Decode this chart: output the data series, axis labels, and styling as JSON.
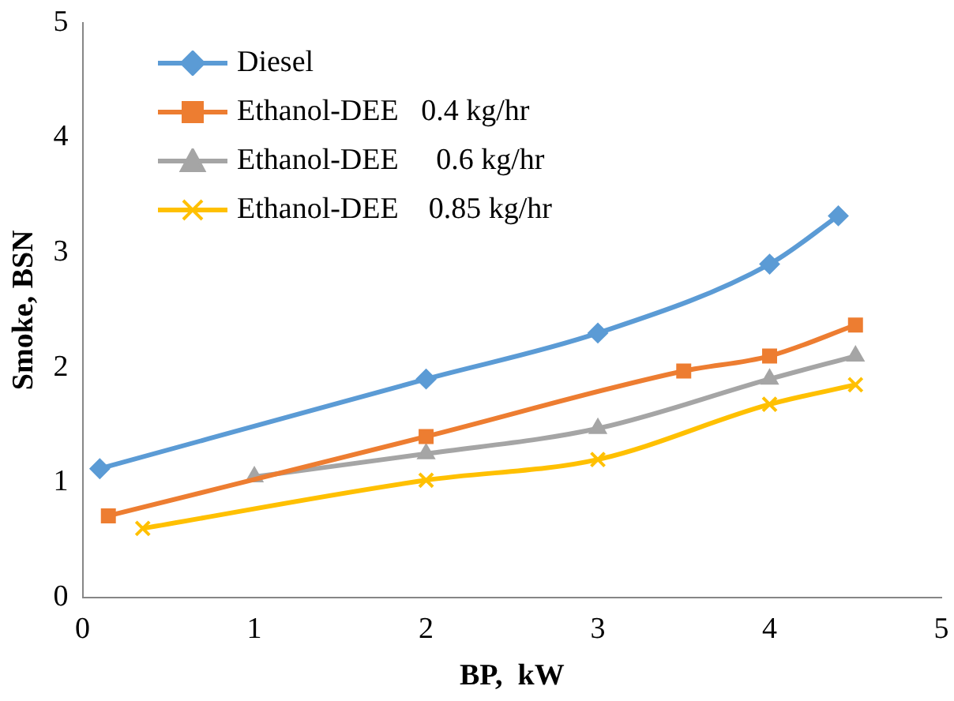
{
  "chart_data": {
    "type": "line",
    "xlabel": "BP,  kW",
    "ylabel": "Smoke, BSN",
    "xlim": [
      0,
      5
    ],
    "xticks": [
      0,
      1,
      2,
      3,
      4,
      5
    ],
    "ylim": [
      0,
      5
    ],
    "yticks": [
      0,
      1,
      2,
      3,
      4,
      5
    ],
    "grid": false,
    "legend": "top left",
    "series": [
      {
        "name": "Diesel",
        "color": "#5b9bd5",
        "marker": "diamond",
        "x": [
          0.1,
          2,
          3,
          4,
          4.4
        ],
        "values": [
          1.12,
          1.9,
          2.3,
          2.9,
          3.32
        ]
      },
      {
        "name": "Ethanol-DEE   0.4 kg/hr",
        "color": "#ed7d31",
        "marker": "square",
        "x": [
          0.15,
          2,
          3.5,
          4,
          4.5
        ],
        "values": [
          0.71,
          1.4,
          1.97,
          2.1,
          2.37
        ]
      },
      {
        "name": "Ethanol-DEE     0.6 kg/hr",
        "color": "#a5a5a5",
        "marker": "triangle",
        "x": [
          1,
          2,
          3,
          4,
          4.5
        ],
        "values": [
          1.05,
          1.25,
          1.47,
          1.9,
          2.1
        ]
      },
      {
        "name": "Ethanol-DEE    0.85 kg/hr",
        "color": "#ffc000",
        "marker": "cross",
        "x": [
          0.35,
          2,
          3,
          4,
          4.5
        ],
        "values": [
          0.6,
          1.02,
          1.2,
          1.68,
          1.85
        ]
      }
    ]
  }
}
